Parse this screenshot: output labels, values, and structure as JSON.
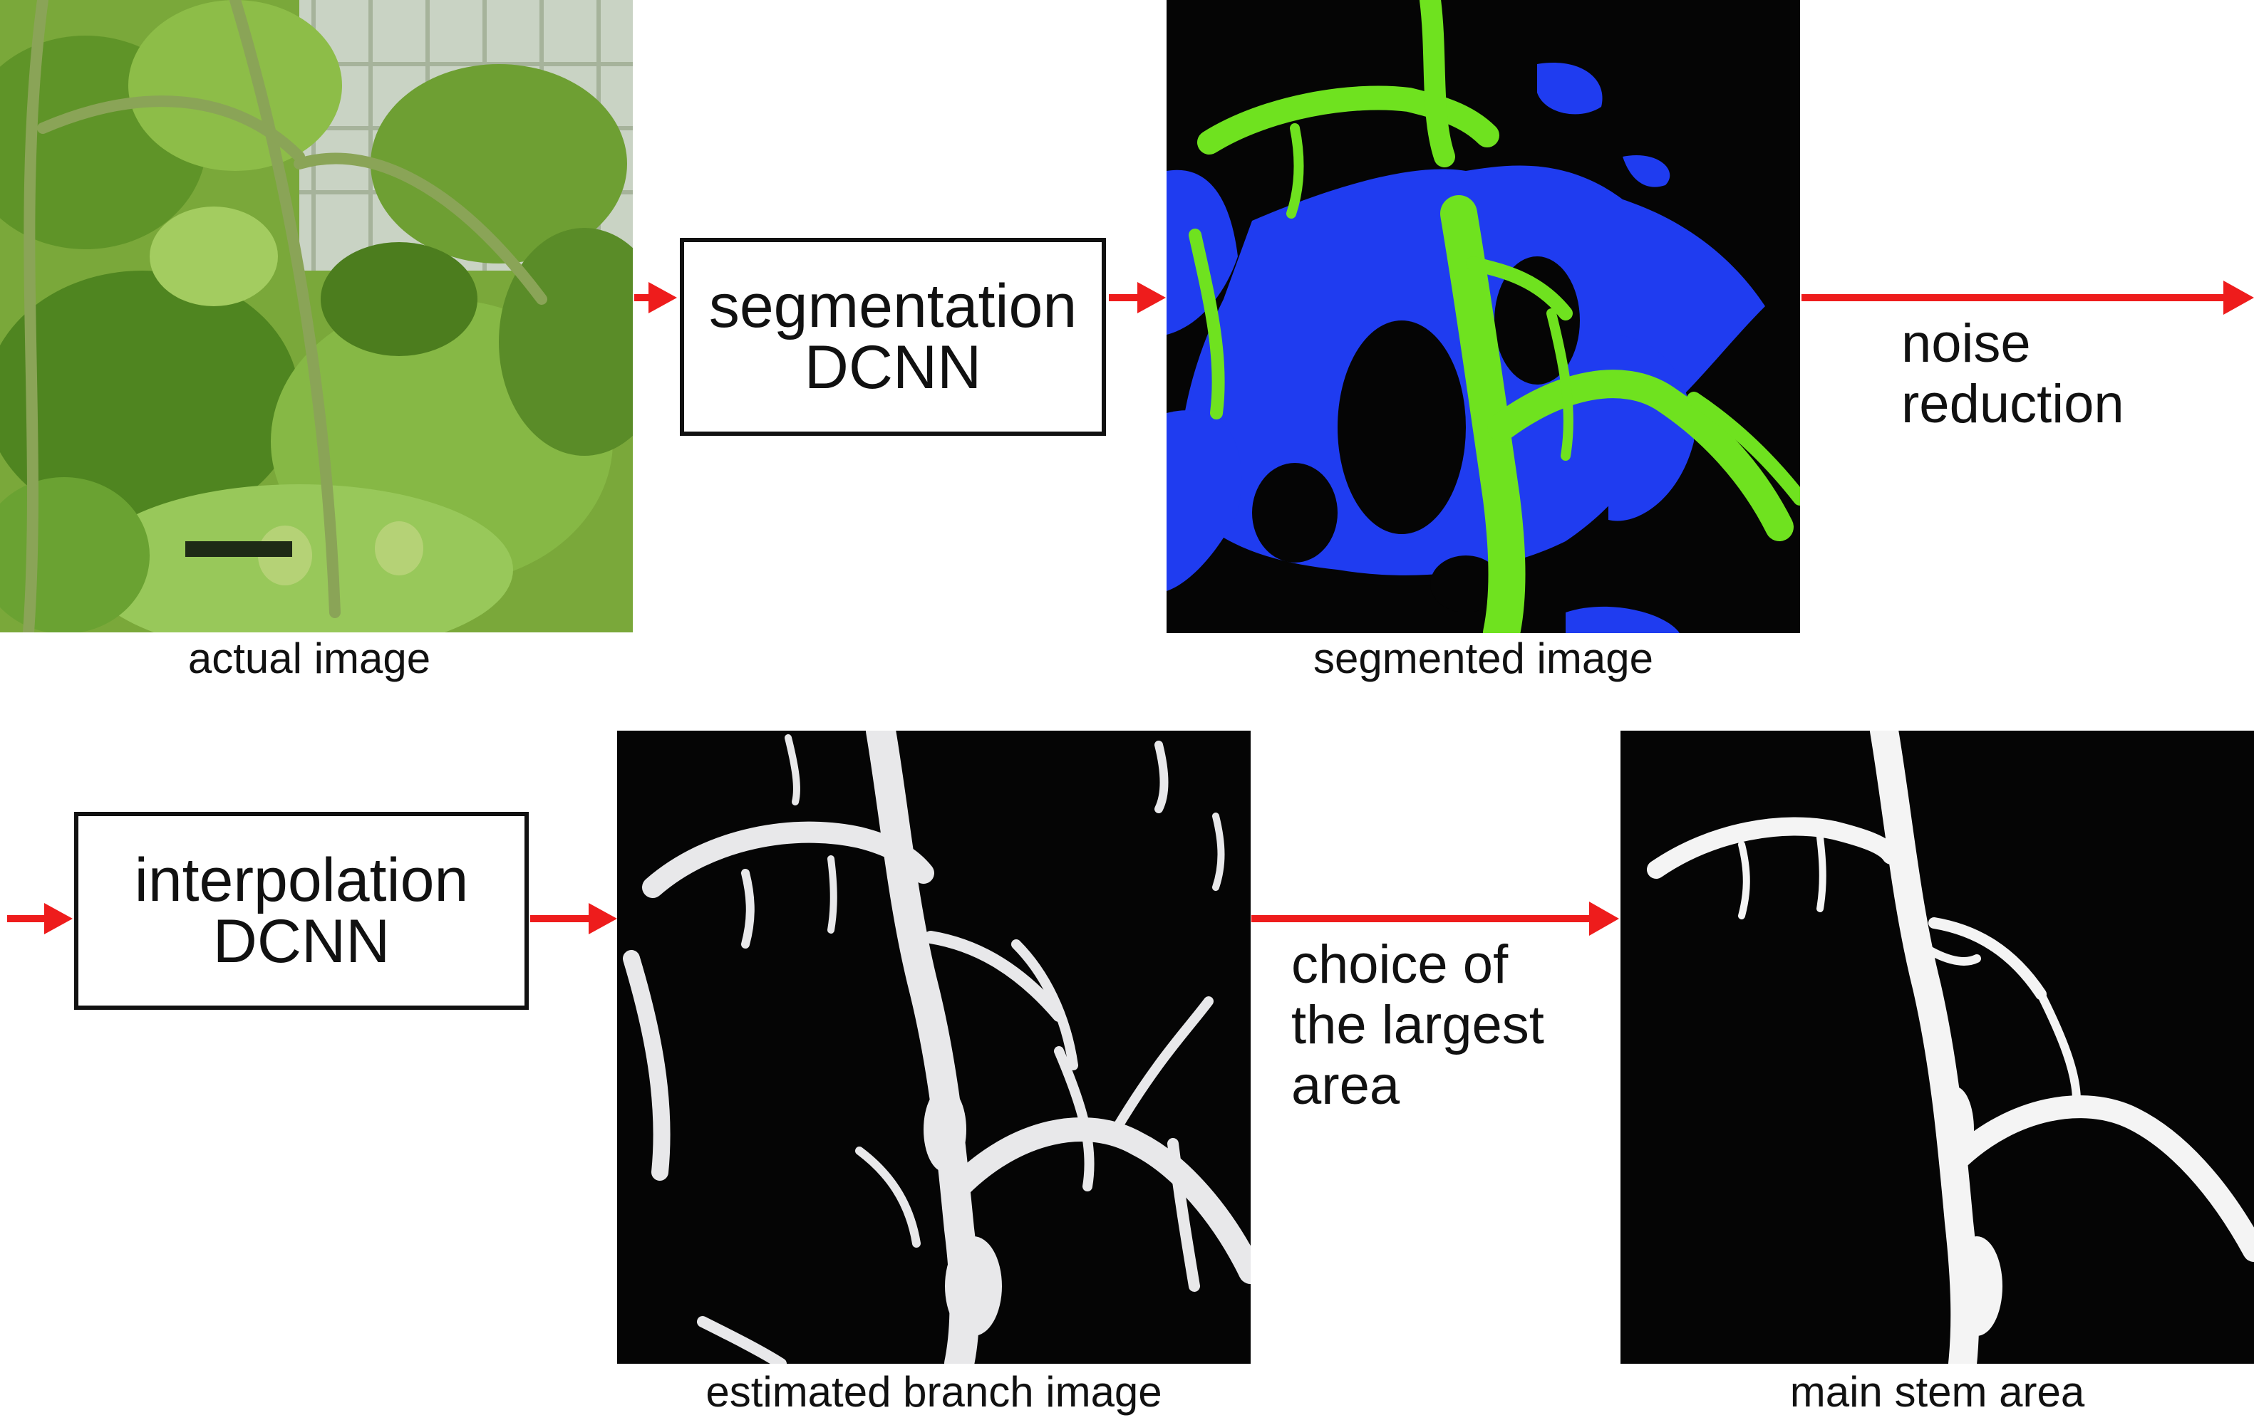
{
  "top_row": {
    "actual_caption": "actual image",
    "segmentation_box": {
      "line1": "segmentation",
      "line2": "DCNN"
    },
    "segmented_caption": "segmented image",
    "noise_label": {
      "line1": "noise",
      "line2": "reduction"
    }
  },
  "bottom_row": {
    "interpolation_box": {
      "line1": "interpolation",
      "line2": "DCNN"
    },
    "branch_caption": "estimated branch image",
    "choice_label": {
      "line1": "choice of",
      "line2": "the largest",
      "line3": "area"
    },
    "main_stem_caption": "main stem area"
  },
  "colors": {
    "arrow": "#ee1c1c",
    "segment_branch": "#6fe21f",
    "segment_leaf": "#1f3cf0",
    "background_dark": "#050505",
    "mask_white": "#f4f4f4"
  }
}
